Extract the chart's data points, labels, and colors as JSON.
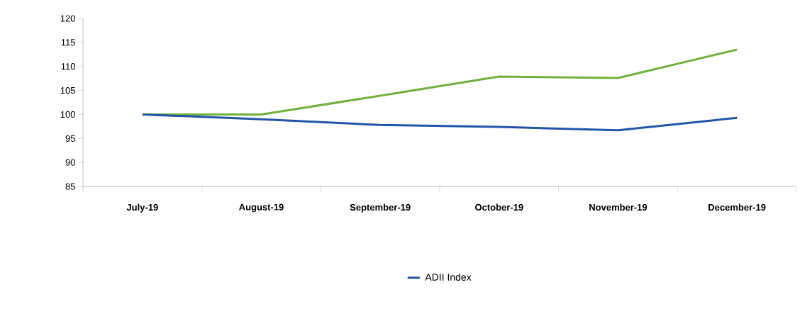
{
  "chart_data": {
    "type": "line",
    "categories": [
      "July-19",
      "August-19",
      "September-19",
      "October-19",
      "November-19",
      "December-19"
    ],
    "series": [
      {
        "color": "#70b03c",
        "values": [
          100,
          100,
          103.9,
          107.9,
          107.6,
          113.5
        ]
      },
      {
        "name": "ADII Index",
        "color": "#2154a8",
        "values": [
          100,
          99,
          97.8,
          97.4,
          96.7,
          99.3
        ]
      }
    ],
    "ylim": [
      85,
      120
    ],
    "yticks": [
      85,
      90,
      95,
      100,
      105,
      110,
      115,
      120
    ],
    "grid": false,
    "legend": "bottom",
    "marker": "none",
    "line_style": "solid"
  }
}
